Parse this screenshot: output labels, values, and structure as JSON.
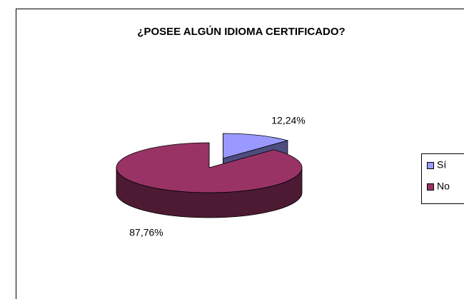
{
  "chart_data": {
    "type": "pie",
    "title": "¿POSEE ALGÚN IDIOMA CERTIFICADO?",
    "categories": [
      "Sí",
      "No"
    ],
    "values": [
      12.24,
      87.76
    ],
    "value_labels": [
      "12,24%",
      "87,76%"
    ],
    "colors": [
      "#9999ff",
      "#993366"
    ],
    "legend": "right"
  }
}
